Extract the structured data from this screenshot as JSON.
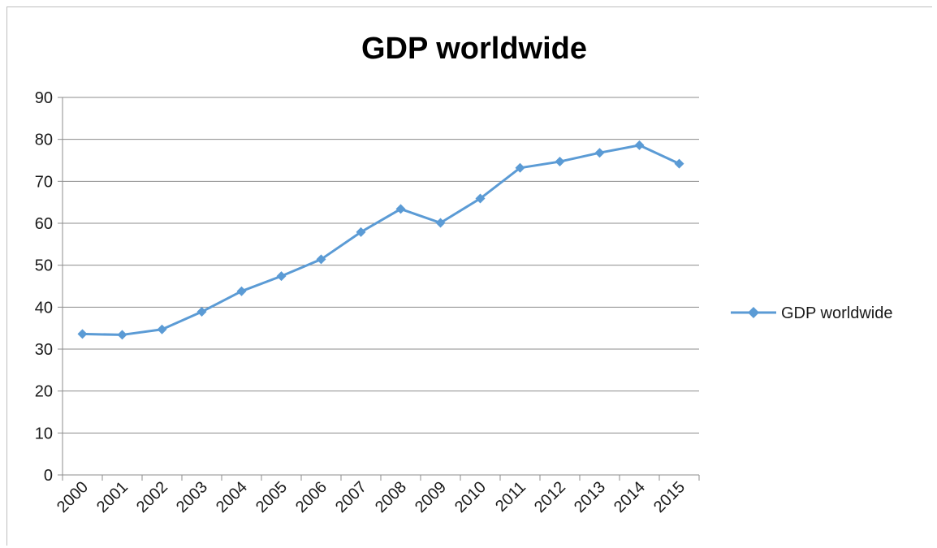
{
  "chart_data": {
    "type": "line",
    "title": "GDP worldwide",
    "categories": [
      "2000",
      "2001",
      "2002",
      "2003",
      "2004",
      "2005",
      "2006",
      "2007",
      "2008",
      "2009",
      "2010",
      "2011",
      "2012",
      "2013",
      "2014",
      "2015"
    ],
    "series": [
      {
        "name": "GDP worldwide",
        "values": [
          33.6,
          33.4,
          34.7,
          38.9,
          43.8,
          47.4,
          51.4,
          57.9,
          63.4,
          60.1,
          65.9,
          73.2,
          74.7,
          76.8,
          78.6,
          74.2
        ],
        "color": "#5b9bd5",
        "marker": "diamond"
      }
    ],
    "ylim": [
      0,
      90
    ],
    "yticks": [
      "0",
      "10",
      "20",
      "30",
      "40",
      "50",
      "60",
      "70",
      "80",
      "90"
    ],
    "grid": true,
    "legend_position": "right"
  }
}
